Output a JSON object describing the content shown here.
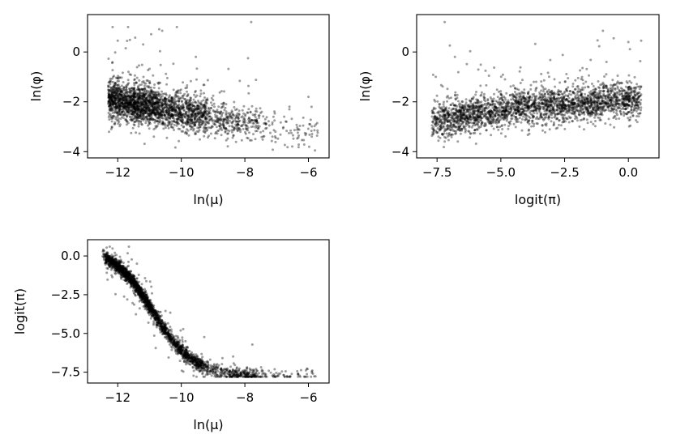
{
  "chart_data": [
    {
      "type": "scatter",
      "panel": "top-left",
      "xlabel": "ln(μ)",
      "ylabel": "ln(φ)",
      "xlim": [
        -12.95,
        -5.35
      ],
      "ylim": [
        -4.25,
        1.5
      ],
      "xticks": [
        -12,
        -10,
        -8,
        -6
      ],
      "yticks": [
        -4,
        -2,
        0
      ],
      "xtick_labels": [
        "−12",
        "−10",
        "−8",
        "−6"
      ],
      "ytick_labels": [
        "−4",
        "−2",
        "0"
      ],
      "grid": false,
      "point_color": "#000000",
      "x_range_of_points": [
        -12.5,
        -5.7
      ],
      "trend": "ln(φ) decreases from about −1.9 at ln(μ)=−12.3 to about −3.0 at ln(μ)=−7",
      "outliers": [
        {
          "x": -7.8,
          "y": 1.2
        },
        {
          "x": -10.6,
          "y": 0.85
        },
        {
          "x": -12.0,
          "y": 0.45
        },
        {
          "x": -11.2,
          "y": 0.3
        },
        {
          "x": -7.9,
          "y": -0.25
        },
        {
          "x": -6.0,
          "y": -1.8
        },
        {
          "x": -5.9,
          "y": -2.2
        },
        {
          "x": -6.6,
          "y": -2.3
        }
      ]
    },
    {
      "type": "scatter",
      "panel": "top-right",
      "xlabel": "logit(π)",
      "ylabel": "ln(φ)",
      "xlim": [
        -8.3,
        1.2
      ],
      "ylim": [
        -4.25,
        1.5
      ],
      "xticks": [
        -7.5,
        -5.0,
        -2.5,
        0.0
      ],
      "yticks": [
        -4,
        -2,
        0
      ],
      "xtick_labels": [
        "−7.5",
        "−5.0",
        "−2.5",
        "0.0"
      ],
      "ytick_labels": [
        "−4",
        "−2",
        "0"
      ],
      "grid": false,
      "point_color": "#000000",
      "x_range_of_points": [
        -7.7,
        0.5
      ],
      "trend": "ln(φ) rises from about −2.8 at logit(π)=−7.5 to about −2.2 at −4 and about −1.9 at 0.5",
      "outliers": [
        {
          "x": -7.2,
          "y": 1.2
        },
        {
          "x": -1.0,
          "y": 0.85
        },
        {
          "x": 0.0,
          "y": 0.4
        },
        {
          "x": 0.5,
          "y": 0.45
        },
        {
          "x": -6.8,
          "y": -0.2
        }
      ]
    },
    {
      "type": "scatter",
      "panel": "bottom-left",
      "xlabel": "ln(μ)",
      "ylabel": "logit(π)",
      "xlim": [
        -12.95,
        -5.35
      ],
      "ylim": [
        -8.2,
        1.05
      ],
      "xticks": [
        -12,
        -10,
        -8,
        -6
      ],
      "yticks": [
        0.0,
        -2.5,
        -5.0,
        -7.5
      ],
      "xtick_labels": [
        "−12",
        "−10",
        "−8",
        "−6"
      ],
      "ytick_labels": [
        "0.0",
        "−2.5",
        "−5.0",
        "−7.5"
      ],
      "grid": false,
      "point_color": "#000000",
      "x_range_of_points": [
        -12.6,
        -5.7
      ],
      "trend": "sigmoidal decline: logit(π) ≈ 0.6 at ln(μ)=−12.6, about −3.5 at −11, then flattens at ≈ −7.75 beyond −8.3"
    }
  ]
}
